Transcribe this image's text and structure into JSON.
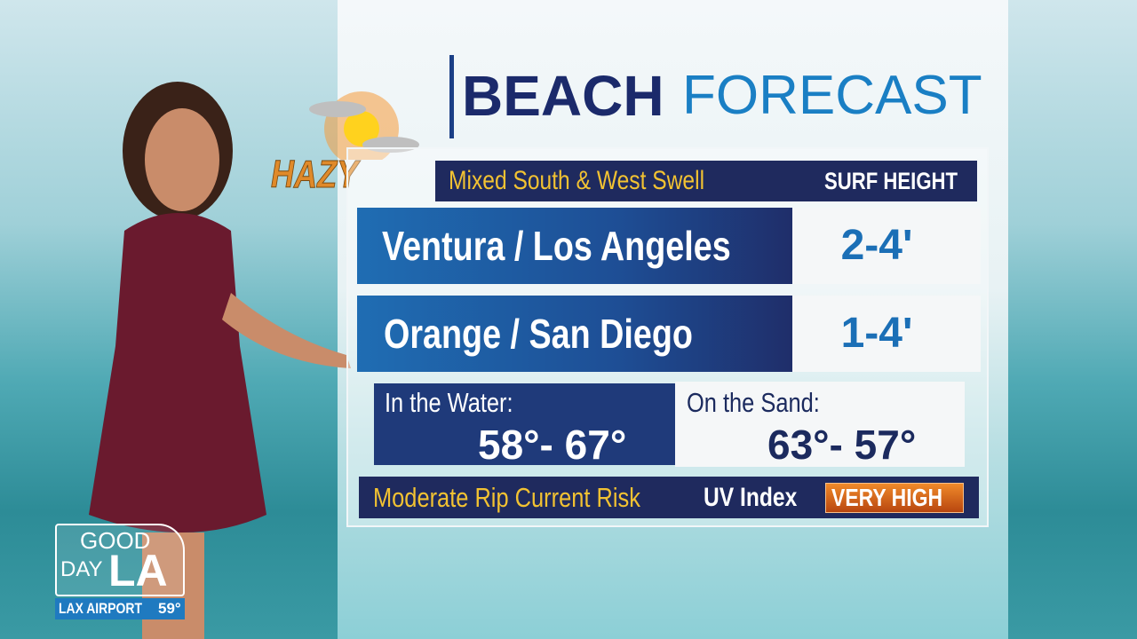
{
  "weather_icon": {
    "label": "HAZY"
  },
  "header": {
    "title_bold": "BEACH",
    "title_light": "FORECAST"
  },
  "table": {
    "swell": "Mixed South & West Swell",
    "surf_height_label": "SURF HEIGHT",
    "rows": [
      {
        "region": "Ventura / Los Angeles",
        "surf": "2-4'"
      },
      {
        "region": "Orange / San Diego",
        "surf": "1-4'"
      }
    ],
    "water": {
      "label": "In the Water:",
      "temp": "58°- 67°"
    },
    "sand": {
      "label": "On the Sand:",
      "temp": "63°- 57°"
    },
    "rip_current": "Moderate Rip Current Risk",
    "uv_label": "UV Index",
    "uv_value": "VERY HIGH"
  },
  "logo": {
    "line1": "GOOD",
    "line2": "DAY",
    "line3": "LA",
    "location": "LAX AIRPORT",
    "temp": "59°"
  }
}
